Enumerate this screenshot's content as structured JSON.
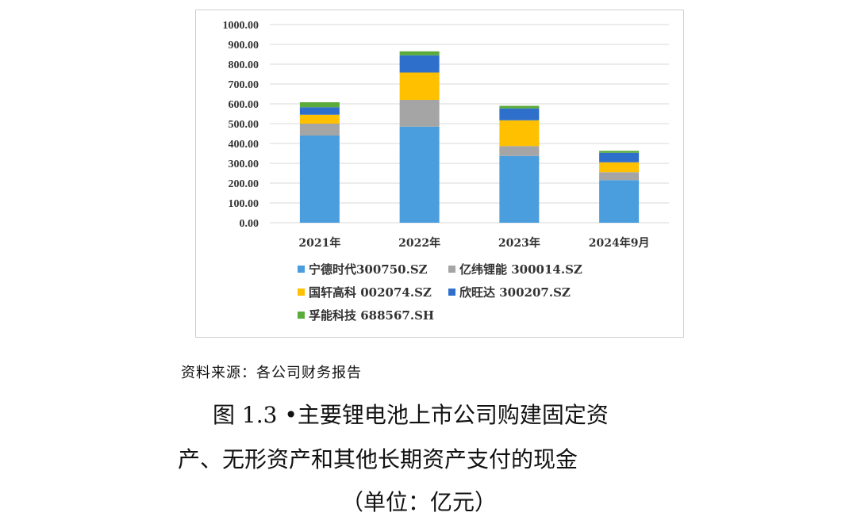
{
  "chart_data": {
    "type": "bar",
    "stacked": true,
    "categories": [
      "2021年",
      "2022年",
      "2023年",
      "2024年9月"
    ],
    "series": [
      {
        "name": "宁德时代300750.SZ",
        "color": "#4a9ede",
        "values": [
          440,
          485,
          337,
          215
        ]
      },
      {
        "name": "亿纬锂能 300014.SZ",
        "color": "#a5a5a5",
        "values": [
          60,
          135,
          50,
          40
        ]
      },
      {
        "name": "国轩高科 002074.SZ",
        "color": "#ffc000",
        "values": [
          45,
          138,
          130,
          50
        ]
      },
      {
        "name": "欣旺达 300207.SZ",
        "color": "#2f6fcc",
        "values": [
          38,
          87,
          60,
          48
        ]
      },
      {
        "name": "孚能科技 688567.SH",
        "color": "#5aab3c",
        "values": [
          25,
          20,
          13,
          10
        ]
      }
    ],
    "ylim": [
      0,
      1000
    ],
    "yticks": [
      "0.00",
      "100.00",
      "200.00",
      "300.00",
      "400.00",
      "500.00",
      "600.00",
      "700.00",
      "800.00",
      "900.00",
      "1000.00"
    ],
    "grid": true,
    "legend_position": "bottom"
  },
  "source_note": "资料来源：各公司财务报告",
  "caption": {
    "line1": "图 1.3 •主要锂电池上市公司购建固定资",
    "line2": "产、无形资产和其他长期资产支付的现金",
    "line3": "（单位：亿元）"
  }
}
